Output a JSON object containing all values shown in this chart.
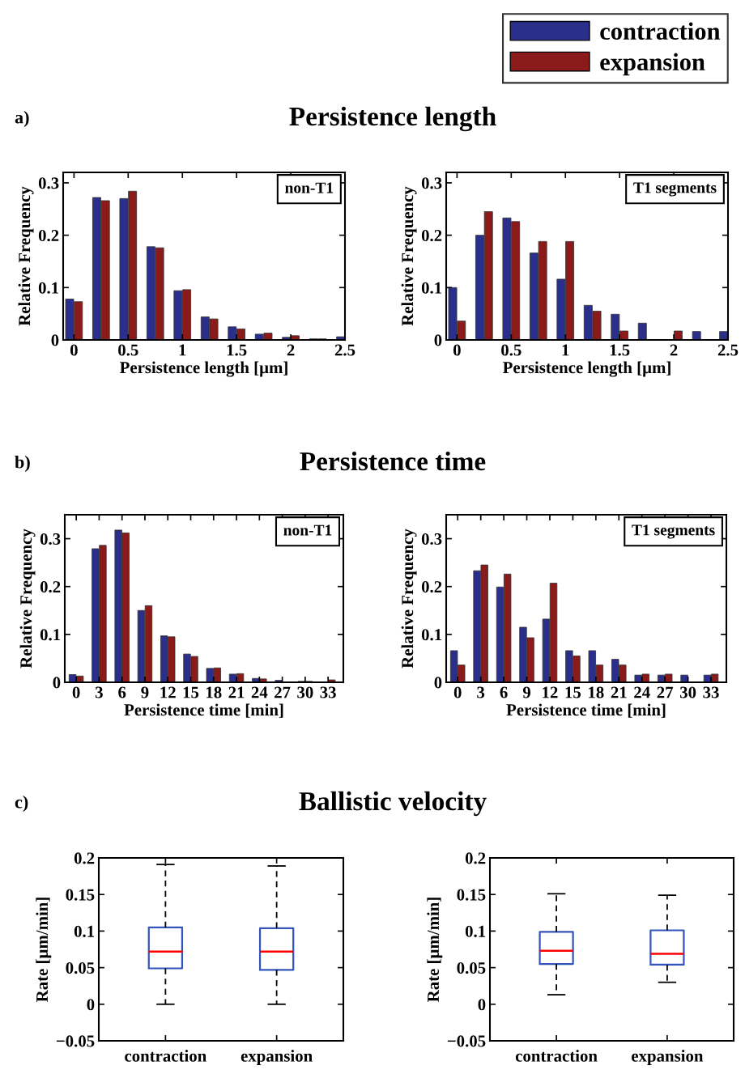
{
  "chart_data": [
    {
      "type": "bar",
      "title": "Persistence length",
      "annotations": [
        "a)",
        "non-T1"
      ],
      "xlabel": "Persistence length [µm]",
      "ylabel": "Relative Frequency",
      "legend": "top right",
      "x": [
        0,
        0.25,
        0.5,
        0.75,
        1,
        1.25,
        1.5,
        1.75,
        2,
        2.25,
        2.5
      ],
      "series": [
        {
          "name": "contraction",
          "color": "#2b2f8c",
          "values": [
            0.078,
            0.272,
            0.27,
            0.178,
            0.094,
            0.044,
            0.025,
            0.011,
            0.005,
            0.002,
            0.006
          ]
        },
        {
          "name": "expansion",
          "color": "#8b1a1a",
          "values": [
            0.073,
            0.266,
            0.284,
            0.176,
            0.096,
            0.04,
            0.021,
            0.013,
            0.008,
            0.002,
            null
          ]
        }
      ],
      "xlim": [
        -0.1,
        2.5
      ],
      "xticks": [
        0,
        0.5,
        1,
        1.5,
        2,
        2.5
      ],
      "ylim": [
        0,
        0.32
      ],
      "yticks": [
        0,
        0.1,
        0.2,
        0.3
      ]
    },
    {
      "type": "bar",
      "annotations": [
        "T1 segments"
      ],
      "xlabel": "Persistence length [µm]",
      "ylabel": "Relative Frequency",
      "x": [
        0,
        0.25,
        0.5,
        0.75,
        1,
        1.25,
        1.5,
        1.75,
        2,
        2.25,
        2.5
      ],
      "series": [
        {
          "color": "#2b2f8c",
          "values": [
            0.1,
            0.2,
            0.233,
            0.166,
            0.116,
            0.066,
            0.049,
            0.032,
            null,
            0.016,
            0.016
          ]
        },
        {
          "color": "#8b1a1a",
          "values": [
            0.036,
            0.245,
            0.226,
            0.188,
            0.188,
            0.055,
            0.017,
            null,
            0.017,
            null,
            null
          ]
        }
      ],
      "xlim": [
        -0.1,
        2.5
      ],
      "xticks": [
        0,
        0.5,
        1,
        1.5,
        2,
        2.5
      ],
      "ylim": [
        0,
        0.32
      ],
      "yticks": [
        0,
        0.1,
        0.2,
        0.3
      ]
    },
    {
      "type": "bar",
      "title": "Persistence time",
      "annotations": [
        "b)",
        "non-T1"
      ],
      "xlabel": "Persistence time [min]",
      "ylabel": "Relative Frequency",
      "x": [
        0,
        3,
        6,
        9,
        12,
        15,
        18,
        21,
        24,
        27,
        30,
        33
      ],
      "series": [
        {
          "color": "#2b2f8c",
          "values": [
            0.016,
            0.279,
            0.318,
            0.15,
            0.097,
            0.059,
            0.029,
            0.017,
            0.008,
            0.004,
            0.002,
            null
          ]
        },
        {
          "color": "#8b1a1a",
          "values": [
            0.013,
            0.286,
            0.312,
            0.16,
            0.095,
            0.054,
            0.03,
            0.018,
            0.007,
            null,
            0.002,
            0.005
          ]
        }
      ],
      "xlim": [
        -1.5,
        35
      ],
      "xticks": [
        0,
        3,
        6,
        9,
        12,
        15,
        18,
        21,
        24,
        27,
        30,
        33
      ],
      "ylim": [
        0,
        0.35
      ],
      "yticks": [
        0,
        0.1,
        0.2,
        0.3
      ]
    },
    {
      "type": "bar",
      "annotations": [
        "T1 segments"
      ],
      "xlabel": "Persistence time [min]",
      "ylabel": "Relative Frequency",
      "x": [
        0,
        3,
        6,
        9,
        12,
        15,
        18,
        21,
        24,
        27,
        30,
        33
      ],
      "series": [
        {
          "color": "#2b2f8c",
          "values": [
            0.066,
            0.233,
            0.199,
            0.115,
            0.132,
            0.066,
            0.066,
            0.048,
            0.015,
            0.015,
            0.015,
            0.015
          ]
        },
        {
          "color": "#8b1a1a",
          "values": [
            0.036,
            0.245,
            0.226,
            0.093,
            0.207,
            0.055,
            0.036,
            0.036,
            0.017,
            0.017,
            null,
            0.017
          ]
        }
      ],
      "xlim": [
        -1.5,
        35
      ],
      "xticks": [
        0,
        3,
        6,
        9,
        12,
        15,
        18,
        21,
        24,
        27,
        30,
        33
      ],
      "ylim": [
        0,
        0.35
      ],
      "yticks": [
        0,
        0.1,
        0.2,
        0.3
      ]
    },
    {
      "type": "box",
      "title": "Ballistic velocity",
      "annotations": [
        "c)"
      ],
      "ylabel": "Rate [µm/min]",
      "categories": [
        "contraction",
        "expansion"
      ],
      "series": [
        {
          "color": "#3355bb",
          "boxes": [
            {
              "low": 0,
              "q1": 0.049,
              "median": 0.072,
              "q3": 0.105,
              "high": 0.191
            },
            {
              "low": 0,
              "q1": 0.047,
              "median": 0.072,
              "q3": 0.104,
              "high": 0.189
            }
          ]
        }
      ],
      "ylim": [
        -0.05,
        0.2
      ],
      "yticks": [
        {
          "value": -0.05,
          "label": "−0.05"
        },
        0,
        0.05,
        0.1,
        0.15,
        0.2
      ]
    },
    {
      "type": "box",
      "ylabel": "Rate [µm/min]",
      "categories": [
        "contraction",
        "expansion"
      ],
      "series": [
        {
          "color": "#3355bb",
          "boxes": [
            {
              "low": 0.013,
              "q1": 0.055,
              "median": 0.073,
              "q3": 0.099,
              "high": 0.151
            },
            {
              "low": 0.03,
              "q1": 0.054,
              "median": 0.069,
              "q3": 0.101,
              "high": 0.149
            }
          ]
        }
      ],
      "ylim": [
        -0.05,
        0.2
      ],
      "yticks": [
        {
          "value": -0.05,
          "label": "−0.05"
        },
        0,
        0.05,
        0.1,
        0.15,
        0.2
      ]
    }
  ]
}
